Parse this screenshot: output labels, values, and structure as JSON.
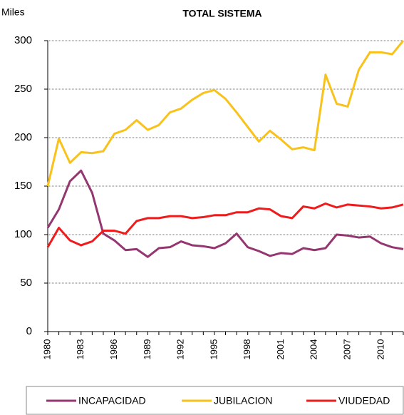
{
  "chart_data": {
    "type": "line",
    "title": "TOTAL SISTEMA",
    "y_label": "Miles",
    "categories": [
      "1980",
      null,
      null,
      "1983",
      null,
      null,
      "1986",
      null,
      null,
      "1989",
      null,
      null,
      "1992",
      null,
      null,
      "1995",
      null,
      null,
      "1998",
      null,
      null,
      "2001",
      null,
      null,
      "2004",
      null,
      null,
      "2007",
      null,
      null,
      "2010",
      null,
      null
    ],
    "series": [
      {
        "name": "INCAPACIDAD",
        "color": "#943670",
        "values": [
          107,
          126,
          155,
          166,
          143,
          101,
          94,
          84,
          85,
          77,
          86,
          87,
          93,
          89,
          88,
          86,
          91,
          101,
          87,
          83,
          78,
          81,
          80,
          86,
          84,
          86,
          100,
          99,
          97,
          98,
          91,
          87,
          85
        ]
      },
      {
        "name": "JUBILACION",
        "color": "#f9c21a",
        "values": [
          150,
          199,
          174,
          185,
          184,
          186,
          204,
          208,
          218,
          208,
          213,
          226,
          230,
          239,
          246,
          249,
          240,
          226,
          211,
          196,
          207,
          198,
          188,
          190,
          187,
          265,
          235,
          232,
          270,
          288,
          288,
          286,
          300
        ]
      },
      {
        "name": "VIUDEDAD",
        "color": "#ee1c1c",
        "values": [
          87,
          107,
          94,
          89,
          93,
          104,
          104,
          101,
          114,
          117,
          117,
          119,
          119,
          117,
          118,
          120,
          120,
          123,
          123,
          127,
          126,
          119,
          117,
          129,
          127,
          132,
          128,
          131,
          130,
          129,
          127,
          128,
          131
        ]
      }
    ],
    "ylim": [
      0,
      300
    ],
    "yticks": [
      0,
      50,
      100,
      150,
      200,
      250,
      300
    ],
    "grid": true,
    "legend": "bottom"
  }
}
